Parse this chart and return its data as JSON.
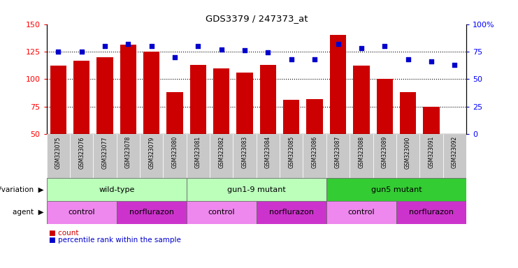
{
  "title": "GDS3379 / 247373_at",
  "samples": [
    "GSM323075",
    "GSM323076",
    "GSM323077",
    "GSM323078",
    "GSM323079",
    "GSM323080",
    "GSM323081",
    "GSM323082",
    "GSM323083",
    "GSM323084",
    "GSM323085",
    "GSM323086",
    "GSM323087",
    "GSM323088",
    "GSM323089",
    "GSM323090",
    "GSM323091",
    "GSM323092"
  ],
  "counts": [
    112,
    117,
    120,
    131,
    125,
    88,
    113,
    110,
    106,
    113,
    81,
    82,
    140,
    112,
    100,
    88,
    75,
    50
  ],
  "percentile_ranks": [
    75,
    75,
    80,
    82,
    80,
    70,
    80,
    77,
    76,
    74,
    68,
    68,
    82,
    78,
    80,
    68,
    66,
    63
  ],
  "ylim_left": [
    50,
    150
  ],
  "ylim_right": [
    0,
    100
  ],
  "yticks_left": [
    50,
    75,
    100,
    125,
    150
  ],
  "yticks_right": [
    0,
    25,
    50,
    75,
    100
  ],
  "bar_color": "#cc0000",
  "scatter_color": "#0000cc",
  "background_color": "#ffffff",
  "xtick_bg": "#c8c8c8",
  "genotype_groups": [
    {
      "label": "wild-type",
      "start": 0,
      "end": 5,
      "color": "#bbffbb"
    },
    {
      "label": "gun1-9 mutant",
      "start": 6,
      "end": 11,
      "color": "#bbffbb"
    },
    {
      "label": "gun5 mutant",
      "start": 12,
      "end": 17,
      "color": "#33cc33"
    }
  ],
  "agent_groups": [
    {
      "label": "control",
      "start": 0,
      "end": 2,
      "color": "#ee88ee"
    },
    {
      "label": "norflurazon",
      "start": 3,
      "end": 5,
      "color": "#cc33cc"
    },
    {
      "label": "control",
      "start": 6,
      "end": 8,
      "color": "#ee88ee"
    },
    {
      "label": "norflurazon",
      "start": 9,
      "end": 11,
      "color": "#cc33cc"
    },
    {
      "label": "control",
      "start": 12,
      "end": 14,
      "color": "#ee88ee"
    },
    {
      "label": "norflurazon",
      "start": 15,
      "end": 17,
      "color": "#cc33cc"
    }
  ],
  "legend_count_color": "#cc0000",
  "legend_pct_color": "#0000cc"
}
